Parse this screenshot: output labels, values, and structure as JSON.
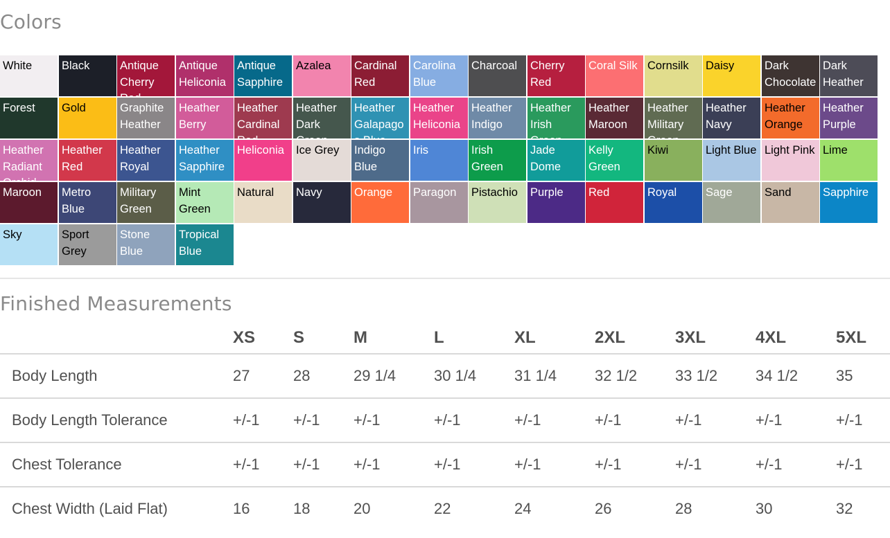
{
  "colors_section": {
    "title": "Colors",
    "swatches": [
      {
        "name": "White",
        "bg": "#f2eef1",
        "fg": "#000000"
      },
      {
        "name": "Black",
        "bg": "#1c1f28",
        "fg": "#ffffff"
      },
      {
        "name": "Antique Cherry Red",
        "bg": "#a3173a",
        "fg": "#ffffff"
      },
      {
        "name": "Antique Heliconia",
        "bg": "#b0306b",
        "fg": "#ffffff"
      },
      {
        "name": "Antique Sapphire",
        "bg": "#06698a",
        "fg": "#ffffff"
      },
      {
        "name": "Azalea",
        "bg": "#f284ae",
        "fg": "#000000"
      },
      {
        "name": "Cardinal Red",
        "bg": "#8c1d34",
        "fg": "#ffffff"
      },
      {
        "name": "Carolina Blue",
        "bg": "#86ade2",
        "fg": "#ffffff"
      },
      {
        "name": "Charcoal",
        "bg": "#4e4e50",
        "fg": "#ffffff"
      },
      {
        "name": "Cherry Red",
        "bg": "#b61f3f",
        "fg": "#ffffff"
      },
      {
        "name": "Coral Silk",
        "bg": "#fc6f72",
        "fg": "#ffffff"
      },
      {
        "name": "Cornsilk",
        "bg": "#e1dd8d",
        "fg": "#000000"
      },
      {
        "name": "Daisy",
        "bg": "#fad32b",
        "fg": "#000000"
      },
      {
        "name": "Dark Chocolate",
        "bg": "#3e3432",
        "fg": "#ffffff"
      },
      {
        "name": "Dark Heather",
        "bg": "#4d4c57",
        "fg": "#ffffff"
      },
      {
        "name": "Forest",
        "bg": "#20382c",
        "fg": "#ffffff"
      },
      {
        "name": "Gold",
        "bg": "#fbbd16",
        "fg": "#000000"
      },
      {
        "name": "Graphite Heather",
        "bg": "#8a8688",
        "fg": "#ffffff"
      },
      {
        "name": "Heather Berry",
        "bg": "#d25c9a",
        "fg": "#ffffff"
      },
      {
        "name": "Heather Cardinal Red",
        "bg": "#9e3a4f",
        "fg": "#ffffff"
      },
      {
        "name": "Heather Dark Green",
        "bg": "#45574d",
        "fg": "#ffffff"
      },
      {
        "name": "Heather Galapagos Blue",
        "bg": "#2f92b3",
        "fg": "#ffffff"
      },
      {
        "name": "Heather Heliconia",
        "bg": "#ea4489",
        "fg": "#ffffff"
      },
      {
        "name": "Heather Indigo",
        "bg": "#6f8aa7",
        "fg": "#ffffff"
      },
      {
        "name": "Heather Irish Green",
        "bg": "#2a9a5d",
        "fg": "#ffffff"
      },
      {
        "name": "Heather Maroon",
        "bg": "#5a2a35",
        "fg": "#ffffff"
      },
      {
        "name": "Heather Military Green",
        "bg": "#606b52",
        "fg": "#ffffff"
      },
      {
        "name": "Heather Navy",
        "bg": "#3b3f56",
        "fg": "#ffffff"
      },
      {
        "name": "Heather Orange",
        "bg": "#f36b2b",
        "fg": "#000000"
      },
      {
        "name": "Heather Purple",
        "bg": "#6c4a8a",
        "fg": "#ffffff"
      },
      {
        "name": "Heather Radiant Orchid",
        "bg": "#d173b1",
        "fg": "#ffffff"
      },
      {
        "name": "Heather Red",
        "bg": "#d2384b",
        "fg": "#ffffff"
      },
      {
        "name": "Heather Royal",
        "bg": "#3c5590",
        "fg": "#ffffff"
      },
      {
        "name": "Heather Sapphire",
        "bg": "#2f8fc4",
        "fg": "#ffffff"
      },
      {
        "name": "Heliconia",
        "bg": "#f13f8a",
        "fg": "#ffffff"
      },
      {
        "name": "Ice Grey",
        "bg": "#e4dbd7",
        "fg": "#000000"
      },
      {
        "name": "Indigo Blue",
        "bg": "#4e6b8a",
        "fg": "#ffffff"
      },
      {
        "name": "Iris",
        "bg": "#4f86d6",
        "fg": "#ffffff"
      },
      {
        "name": "Irish Green",
        "bg": "#0d9c4b",
        "fg": "#ffffff"
      },
      {
        "name": "Jade Dome",
        "bg": "#119c9a",
        "fg": "#ffffff"
      },
      {
        "name": "Kelly Green",
        "bg": "#13b77f",
        "fg": "#ffffff"
      },
      {
        "name": "Kiwi",
        "bg": "#89b05d",
        "fg": "#000000"
      },
      {
        "name": "Light Blue",
        "bg": "#aac7e4",
        "fg": "#000000"
      },
      {
        "name": "Light Pink",
        "bg": "#f0c8d9",
        "fg": "#000000"
      },
      {
        "name": "Lime",
        "bg": "#9ee06b",
        "fg": "#000000"
      },
      {
        "name": "Maroon",
        "bg": "#5c1a2d",
        "fg": "#ffffff"
      },
      {
        "name": "Metro Blue",
        "bg": "#3d4776",
        "fg": "#ffffff"
      },
      {
        "name": "Military Green",
        "bg": "#5b5d48",
        "fg": "#ffffff"
      },
      {
        "name": "Mint Green",
        "bg": "#b5e9b6",
        "fg": "#000000"
      },
      {
        "name": "Natural",
        "bg": "#e9dcc7",
        "fg": "#000000"
      },
      {
        "name": "Navy",
        "bg": "#27293b",
        "fg": "#ffffff"
      },
      {
        "name": "Orange",
        "bg": "#ff6b3a",
        "fg": "#ffffff"
      },
      {
        "name": "Paragon",
        "bg": "#a8969f",
        "fg": "#ffffff"
      },
      {
        "name": "Pistachio",
        "bg": "#cfe0b7",
        "fg": "#000000"
      },
      {
        "name": "Purple",
        "bg": "#4c2a86",
        "fg": "#ffffff"
      },
      {
        "name": "Red",
        "bg": "#d0243a",
        "fg": "#ffffff"
      },
      {
        "name": "Royal",
        "bg": "#1c4fa8",
        "fg": "#ffffff"
      },
      {
        "name": "Sage",
        "bg": "#a0a898",
        "fg": "#ffffff"
      },
      {
        "name": "Sand",
        "bg": "#c8b7a6",
        "fg": "#000000"
      },
      {
        "name": "Sapphire",
        "bg": "#0c86c7",
        "fg": "#ffffff"
      },
      {
        "name": "Sky",
        "bg": "#b5e0f5",
        "fg": "#000000"
      },
      {
        "name": "Sport Grey",
        "bg": "#9b9b9b",
        "fg": "#000000"
      },
      {
        "name": "Stone Blue",
        "bg": "#8fa3bc",
        "fg": "#ffffff"
      },
      {
        "name": "Tropical Blue",
        "bg": "#1b8790",
        "fg": "#ffffff"
      }
    ]
  },
  "measurements_section": {
    "title": "Finished Measurements",
    "sizes": [
      "XS",
      "S",
      "M",
      "L",
      "XL",
      "2XL",
      "3XL",
      "4XL",
      "5XL"
    ],
    "rows": [
      {
        "label": "Body Length",
        "values": [
          "27",
          "28",
          "29 1/4",
          "30 1/4",
          "31 1/4",
          "32 1/2",
          "33 1/2",
          "34 1/2",
          "35"
        ]
      },
      {
        "label": "Body Length Tolerance",
        "values": [
          "+/-1",
          "+/-1",
          "+/-1",
          "+/-1",
          "+/-1",
          "+/-1",
          "+/-1",
          "+/-1",
          "+/-1"
        ]
      },
      {
        "label": "Chest Tolerance",
        "values": [
          "+/-1",
          "+/-1",
          "+/-1",
          "+/-1",
          "+/-1",
          "+/-1",
          "+/-1",
          "+/-1",
          "+/-1"
        ]
      },
      {
        "label": "Chest Width (Laid Flat)",
        "values": [
          "16",
          "18",
          "20",
          "22",
          "24",
          "26",
          "28",
          "30",
          "32"
        ]
      }
    ]
  }
}
